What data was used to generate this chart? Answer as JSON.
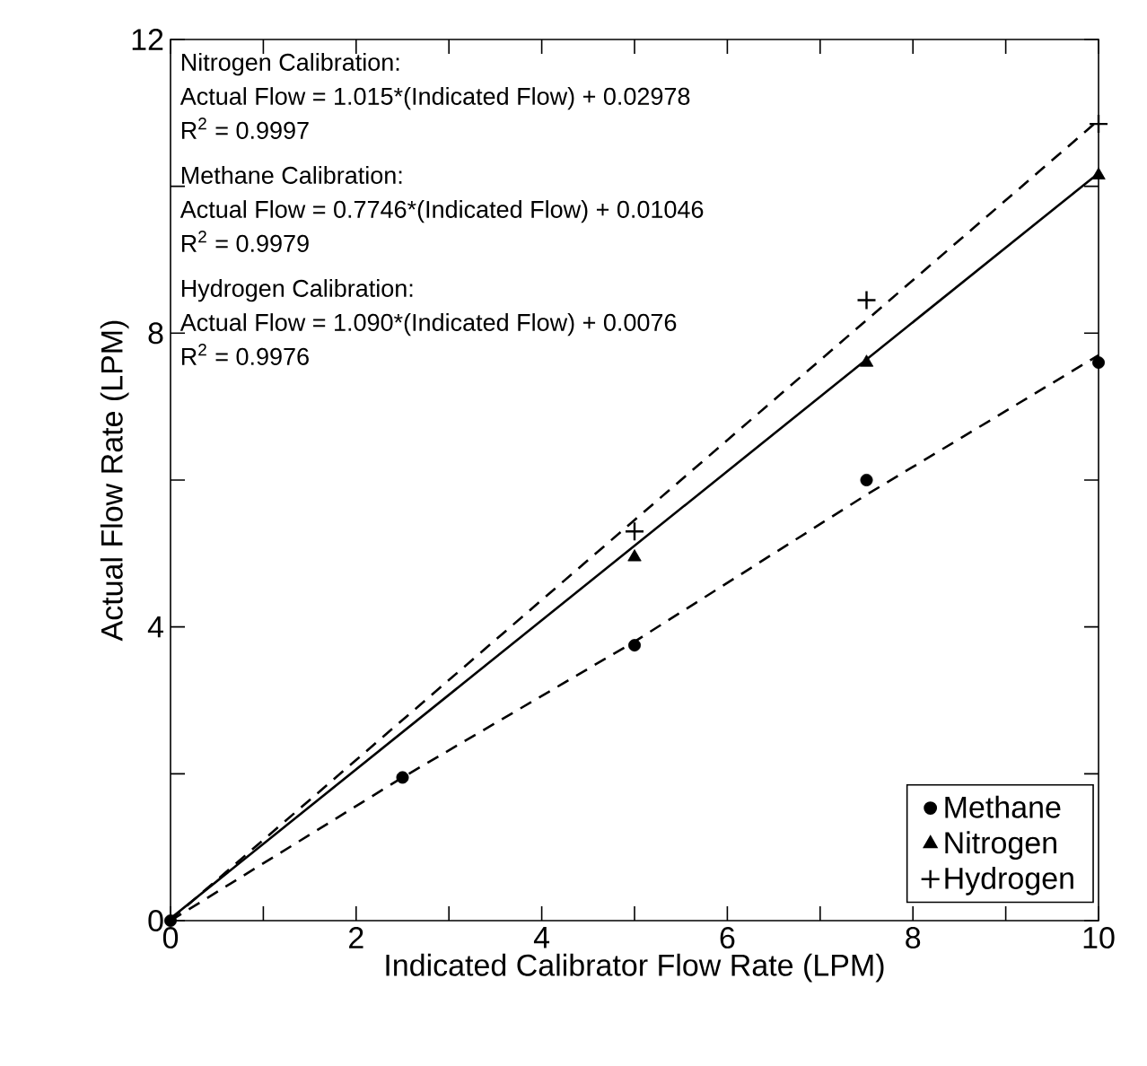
{
  "chart_data": {
    "type": "scatter",
    "xlabel": "Indicated Calibrator Flow Rate (LPM)",
    "ylabel": "Actual Flow Rate (LPM)",
    "xlim": [
      0,
      10
    ],
    "ylim": [
      0,
      12
    ],
    "xticks": [
      0,
      {
        "value": 1,
        "label": null
      },
      2,
      {
        "value": 3,
        "label": null
      },
      4,
      {
        "value": 5,
        "label": null
      },
      6,
      {
        "value": 7,
        "label": null
      },
      8,
      {
        "value": 9,
        "label": null
      },
      10
    ],
    "yticks": [
      0,
      {
        "value": 2,
        "label": null
      },
      4,
      {
        "value": 6,
        "label": null
      },
      8,
      {
        "value": 10,
        "label": null
      },
      12
    ],
    "grid": false,
    "legend": "bottom right",
    "series": [
      {
        "name": "Methane",
        "marker": "circle",
        "color": "#000000",
        "x": [
          0,
          2.5,
          5,
          7.5,
          10
        ],
        "values": [
          0,
          1.95,
          3.75,
          6.0,
          7.6
        ]
      },
      {
        "name": "Nitrogen",
        "marker": "triangle",
        "color": "#000000",
        "x": [
          5,
          7.5,
          10
        ],
        "values": [
          4.95,
          7.6,
          10.15
        ]
      },
      {
        "name": "Hydrogen",
        "marker": "cross",
        "color": "#000000",
        "x": [
          5,
          7.5,
          10
        ],
        "values": [
          5.3,
          8.45,
          10.85
        ]
      },
      {
        "type": "line",
        "line_style": "dashed",
        "color": "#000000",
        "x": [
          0,
          2.5,
          5,
          7.5,
          10
        ],
        "values": [
          0,
          1.95,
          3.8,
          5.8,
          7.7
        ]
      },
      {
        "type": "line",
        "line_style": "solid",
        "color": "#000000",
        "x": [
          0,
          10
        ],
        "values": [
          0.03,
          10.18
        ]
      },
      {
        "type": "line",
        "line_style": "dashed",
        "color": "#000000",
        "x": [
          0,
          10
        ],
        "values": [
          0.01,
          10.9
        ]
      }
    ],
    "annotations": [
      "Nitrogen Calibration:",
      "Actual Flow = 1.015*(Indicated Flow) + 0.02978",
      "R$^{2}$ = 0.9997",
      "Methane Calibration:",
      "Actual Flow = 0.7746*(Indicated Flow) + 0.01046",
      "R$^{2}$ = 0.9979",
      "Hydrogen Calibration:",
      "Actual Flow = 1.090*(Indicated Flow) + 0.0076",
      "R$^{2}$ = 0.9976"
    ]
  }
}
